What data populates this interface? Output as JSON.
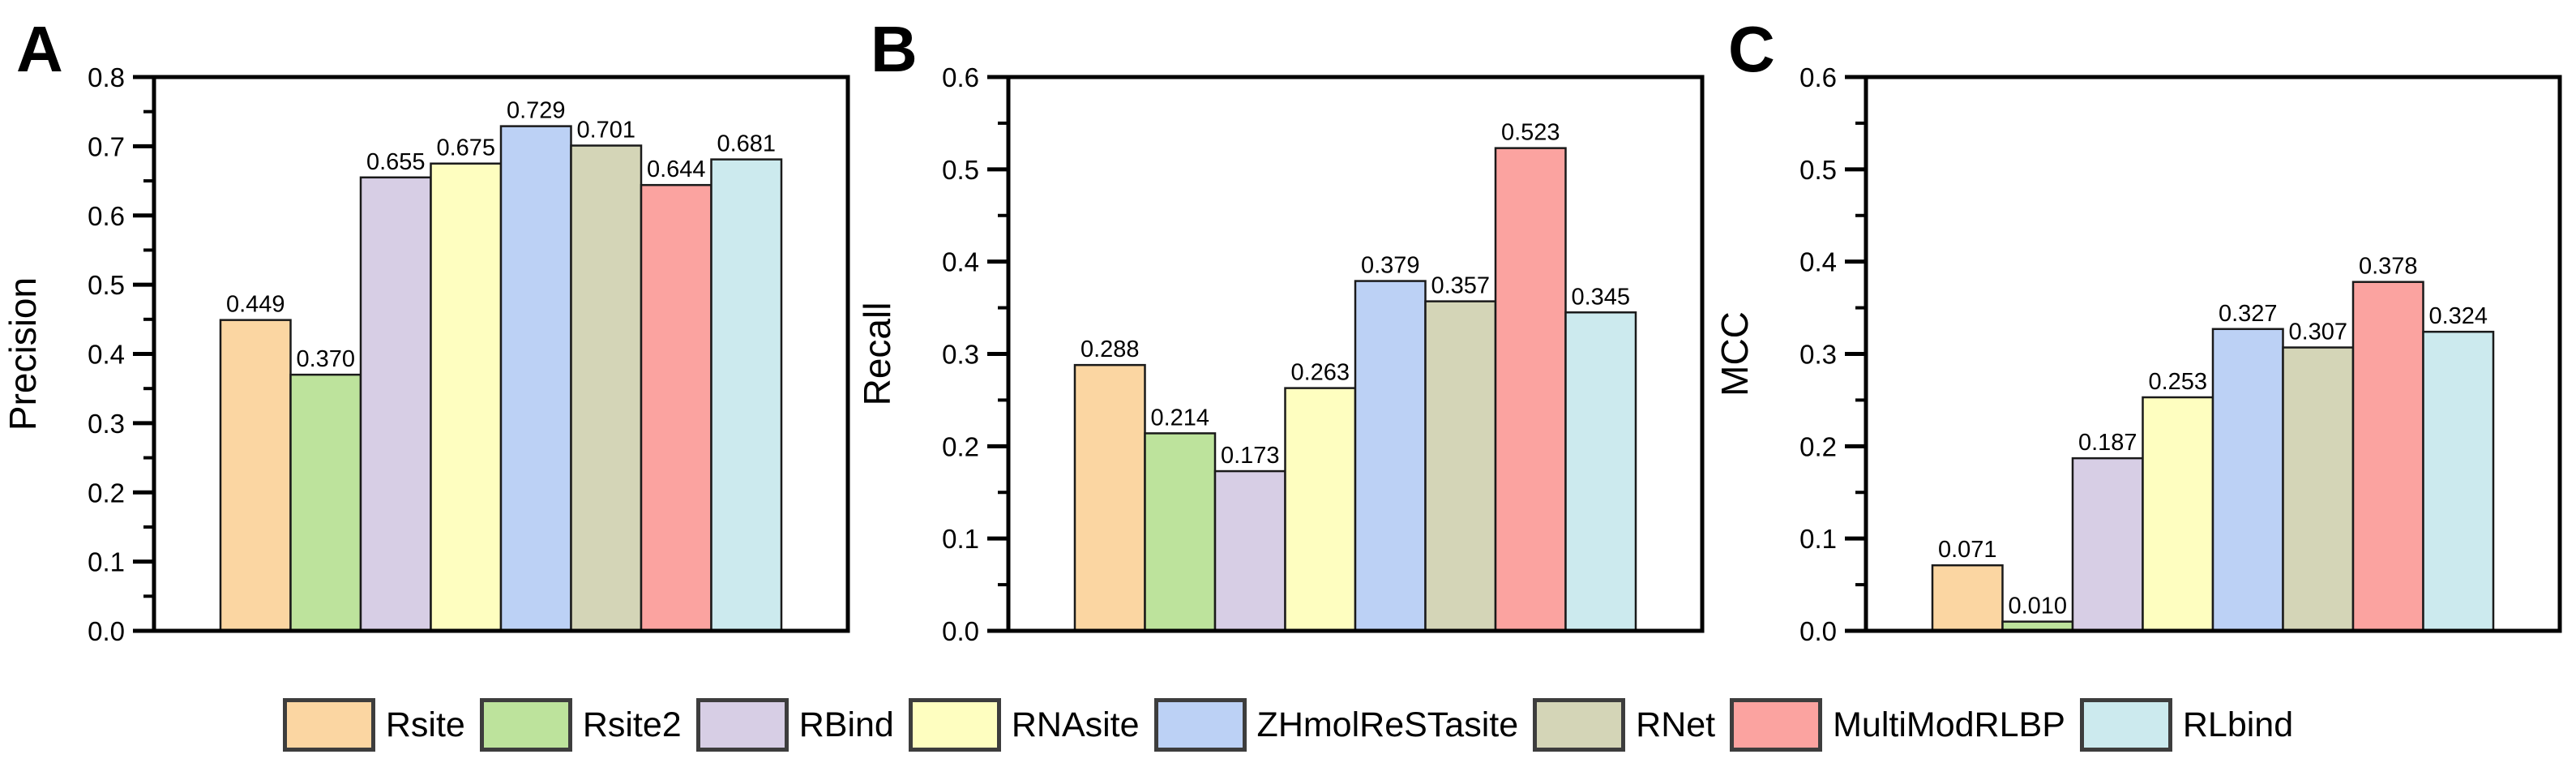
{
  "chart_data": [
    {
      "type": "bar",
      "panel_label": "A",
      "title": "",
      "xlabel": "",
      "ylabel": "Precision",
      "ylim": [
        0,
        0.8
      ],
      "ytick_interval": 0.1,
      "minor_tick_interval": 0.05,
      "grid": false,
      "categories": [
        "Rsite",
        "Rsite2",
        "RBind",
        "RNAsite",
        "ZHmolReSTasite",
        "RNet",
        "MultiModRLBP",
        "RLbind"
      ],
      "values": [
        0.449,
        0.37,
        0.655,
        0.675,
        0.729,
        0.701,
        0.644,
        0.681
      ],
      "value_labels": [
        "0.449",
        "0.370",
        "0.655",
        "0.675",
        "0.729",
        "0.701",
        "0.644",
        "0.681"
      ]
    },
    {
      "type": "bar",
      "panel_label": "B",
      "title": "",
      "xlabel": "",
      "ylabel": "Recall",
      "ylim": [
        0,
        0.6
      ],
      "ytick_interval": 0.1,
      "minor_tick_interval": 0.05,
      "grid": false,
      "categories": [
        "Rsite",
        "Rsite2",
        "RBind",
        "RNAsite",
        "ZHmolReSTasite",
        "RNet",
        "MultiModRLBP",
        "RLbind"
      ],
      "values": [
        0.288,
        0.214,
        0.173,
        0.263,
        0.379,
        0.357,
        0.523,
        0.345
      ],
      "value_labels": [
        "0.288",
        "0.214",
        "0.173",
        "0.263",
        "0.379",
        "0.357",
        "0.523",
        "0.345"
      ]
    },
    {
      "type": "bar",
      "panel_label": "C",
      "title": "",
      "xlabel": "",
      "ylabel": "MCC",
      "ylim": [
        0,
        0.6
      ],
      "ytick_interval": 0.1,
      "minor_tick_interval": 0.05,
      "grid": false,
      "categories": [
        "Rsite",
        "Rsite2",
        "RBind",
        "RNAsite",
        "ZHmolReSTasite",
        "RNet",
        "MultiModRLBP",
        "RLbind"
      ],
      "values": [
        0.071,
        0.01,
        0.187,
        0.253,
        0.327,
        0.307,
        0.378,
        0.324
      ],
      "value_labels": [
        "0.071",
        "0.010",
        "0.187",
        "0.253",
        "0.327",
        "0.307",
        "0.378",
        "0.324"
      ]
    }
  ],
  "legend": {
    "position": "bottom-center",
    "swatch_border_color": "#3d3d3d",
    "items": [
      {
        "label": "Rsite",
        "color": "#FBD6A2"
      },
      {
        "label": "Rsite2",
        "color": "#BDE39C"
      },
      {
        "label": "RBind",
        "color": "#D7CEE5"
      },
      {
        "label": "RNAsite",
        "color": "#FEFEC0"
      },
      {
        "label": "ZHmolReSTasite",
        "color": "#BCD1F5"
      },
      {
        "label": "RNet",
        "color": "#D4D5B7"
      },
      {
        "label": "MultiModRLBP",
        "color": "#FBA3A0"
      },
      {
        "label": "RLbind",
        "color": "#CCEAEE"
      }
    ]
  },
  "styles": {
    "background": "#ffffff",
    "axis_color": "#000000",
    "bar_outline_color": "#1a1a1a",
    "text_color": "#000000"
  }
}
